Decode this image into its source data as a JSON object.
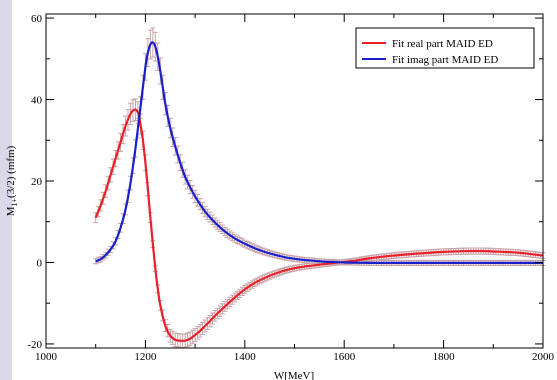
{
  "chart_data": {
    "type": "line",
    "title": "",
    "xlabel": "W[MeV]",
    "ylabel": "M1+(3/2) (mfm)",
    "ylabel_main": "M",
    "ylabel_sub": "1+",
    "ylabel_rest": "(3/2) (mfm)",
    "xlim": [
      1000,
      2000
    ],
    "ylim": [
      -21,
      61
    ],
    "xticks": [
      1000,
      1200,
      1400,
      1600,
      1800,
      2000
    ],
    "yticks": [
      -20,
      0,
      20,
      40,
      60
    ],
    "grid": false,
    "legend_position": "top-right",
    "series": [
      {
        "name": "Fit real part MAID ED",
        "color": "#e8202a",
        "x": [
          1100,
          1110,
          1120,
          1130,
          1140,
          1150,
          1160,
          1170,
          1175,
          1180,
          1185,
          1190,
          1195,
          1200,
          1205,
          1210,
          1215,
          1220,
          1225,
          1230,
          1240,
          1250,
          1260,
          1270,
          1280,
          1290,
          1300,
          1310,
          1320,
          1330,
          1340,
          1360,
          1380,
          1400,
          1420,
          1440,
          1460,
          1480,
          1500,
          1520,
          1540,
          1560,
          1580,
          1600,
          1620,
          1650,
          1700,
          1750,
          1800,
          1850,
          1880,
          1900,
          1950,
          2000
        ],
        "y": [
          11,
          14,
          17.5,
          21.5,
          25.5,
          29.5,
          33.5,
          36.5,
          37.3,
          37.5,
          36.8,
          34,
          30,
          24.5,
          18,
          11,
          4.5,
          -1.5,
          -6.5,
          -10.5,
          -15.5,
          -18,
          -19,
          -19.2,
          -19.2,
          -18.7,
          -17.8,
          -16.8,
          -15.6,
          -14.4,
          -13.1,
          -10.8,
          -8.6,
          -6.6,
          -5,
          -3.8,
          -2.8,
          -2,
          -1.4,
          -1,
          -0.7,
          -0.4,
          -0.1,
          0.1,
          0.4,
          1,
          1.7,
          2.2,
          2.6,
          2.8,
          2.8,
          2.7,
          2.4,
          1.7
        ]
      },
      {
        "name": "Fit imag part MAID ED",
        "color": "#1a20c8",
        "x": [
          1100,
          1110,
          1120,
          1130,
          1140,
          1150,
          1160,
          1170,
          1180,
          1190,
          1200,
          1205,
          1210,
          1215,
          1220,
          1225,
          1230,
          1235,
          1240,
          1250,
          1260,
          1270,
          1280,
          1290,
          1300,
          1320,
          1340,
          1360,
          1380,
          1400,
          1420,
          1440,
          1460,
          1480,
          1500,
          1520,
          1540,
          1560,
          1580,
          1600,
          1650,
          1700,
          1800,
          1900,
          2000
        ],
        "y": [
          0.3,
          0.8,
          1.8,
          3.2,
          5.2,
          8.5,
          13,
          19.5,
          28,
          38,
          48,
          51.5,
          53.5,
          54,
          53,
          50.5,
          47,
          43,
          39,
          33,
          28.5,
          24.5,
          21,
          18.5,
          16.2,
          12.5,
          9.8,
          7.6,
          5.9,
          4.6,
          3.5,
          2.6,
          1.9,
          1.3,
          0.9,
          0.6,
          0.4,
          0.2,
          0.1,
          0,
          -0.1,
          -0.1,
          -0.1,
          -0.1,
          -0.1
        ]
      }
    ]
  }
}
